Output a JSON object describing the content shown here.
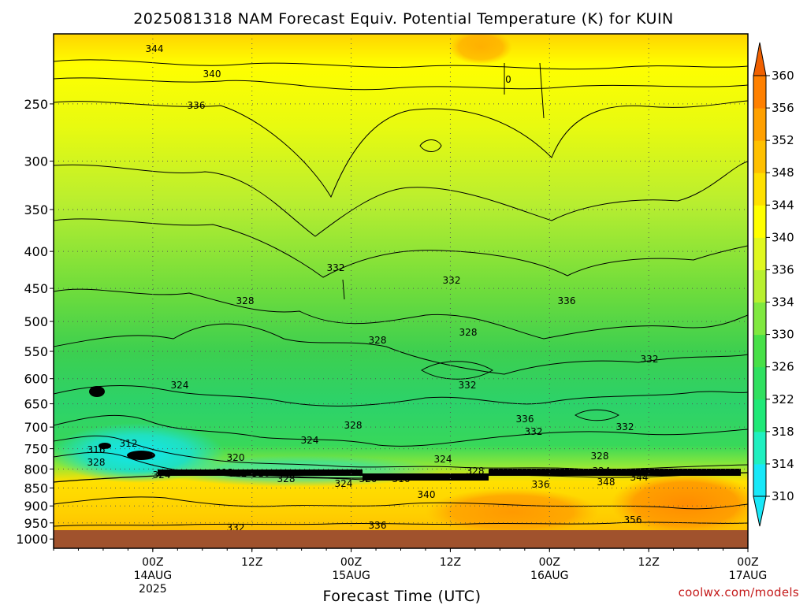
{
  "chart_data": {
    "type": "heatmap",
    "title": "2025081318 NAM Forecast Equiv. Potential Temperature (K) for KUIN",
    "xlabel": "Forecast Time (UTC)",
    "ylabel": "",
    "y_ticks": [
      250,
      300,
      350,
      400,
      450,
      500,
      550,
      600,
      650,
      700,
      750,
      800,
      850,
      900,
      950,
      1000
    ],
    "y_scale": "log-pressure (inverted)",
    "y_range": [
      200,
      1030
    ],
    "x_range_hours": [
      -12,
      72
    ],
    "x_ticks": [
      {
        "hour": 0,
        "lines": [
          "00Z",
          "14AUG",
          "2025"
        ]
      },
      {
        "hour": 12,
        "lines": [
          "12Z"
        ]
      },
      {
        "hour": 24,
        "lines": [
          "00Z",
          "15AUG"
        ]
      },
      {
        "hour": 36,
        "lines": [
          "12Z"
        ]
      },
      {
        "hour": 48,
        "lines": [
          "00Z",
          "16AUG"
        ]
      },
      {
        "hour": 60,
        "lines": [
          "12Z"
        ]
      },
      {
        "hour": 72,
        "lines": [
          "00Z",
          "17AUG"
        ]
      }
    ],
    "colorbar": {
      "ticks": [
        310,
        314,
        318,
        322,
        326,
        330,
        334,
        336,
        340,
        344,
        348,
        352,
        356,
        360
      ],
      "colors": [
        "#18e8f8",
        "#20f0c0",
        "#20e878",
        "#30e060",
        "#48e048",
        "#80e840",
        "#b8f030",
        "#e0f820",
        "#ffff00",
        "#ffe000",
        "#ffc000",
        "#ffa000",
        "#ff8000",
        "#f06000"
      ]
    },
    "grid": true,
    "ground_color": "#a0522d",
    "contour_labels": [
      "344",
      "340",
      "336",
      "332",
      "332",
      "328",
      "328",
      "328",
      "336",
      "324",
      "332",
      "332",
      "336",
      "332",
      "332",
      "328",
      "324",
      "312",
      "316",
      "328",
      "324",
      "312",
      "316",
      "328",
      "324",
      "320",
      "316",
      "340",
      "328",
      "324",
      "336",
      "348",
      "344",
      "356",
      "332",
      "336",
      "320",
      "324",
      "328",
      "312",
      "0"
    ]
  },
  "credit": "coolwx.com/models"
}
